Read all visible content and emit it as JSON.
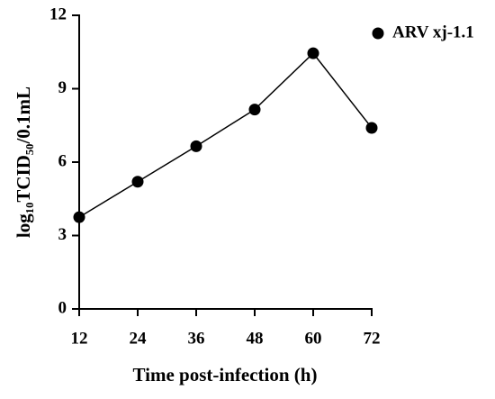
{
  "chart_data": {
    "type": "line",
    "xlabel": "Time post-infection (h)",
    "ylabel": "log₁₀TCID₅₀/0.1mL",
    "x": [
      12,
      24,
      36,
      48,
      60,
      72
    ],
    "series": [
      {
        "name": "ARV xj-1.1",
        "color": "#000000",
        "values": [
          3.75,
          5.2,
          6.65,
          8.15,
          10.45,
          7.4
        ]
      }
    ],
    "xlim": [
      12,
      72
    ],
    "xticks": [
      12,
      24,
      36,
      48,
      60,
      72
    ],
    "ylim": [
      0,
      12
    ],
    "yticks": [
      0,
      3,
      6,
      9,
      12
    ],
    "grid": false,
    "legend": "top-right"
  }
}
